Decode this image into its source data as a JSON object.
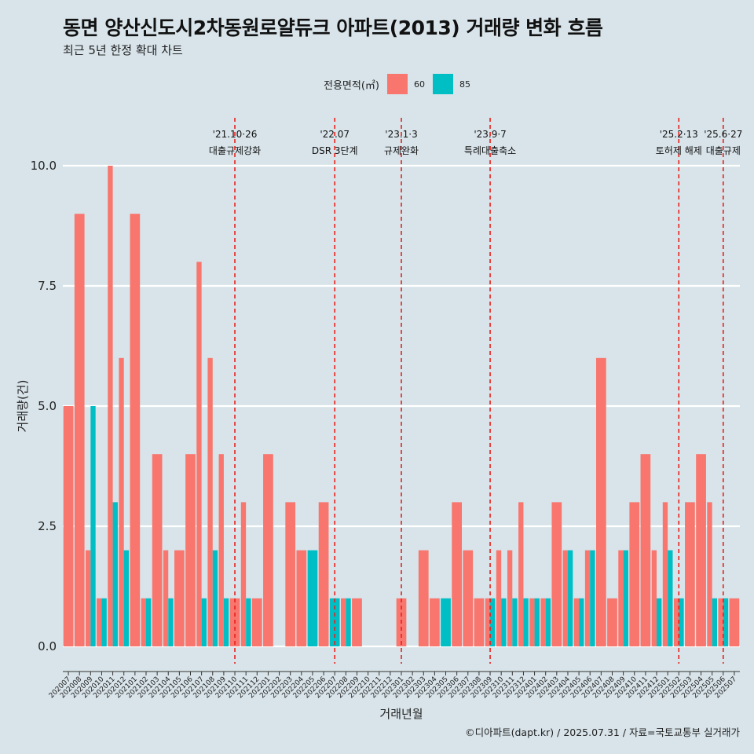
{
  "chart_data": {
    "type": "bar",
    "title": "동면 양산신도시2차동원로얄듀크 아파트(2013) 거래량 변화 흐름",
    "subtitle": "최근 5년 한정 확대 차트",
    "xlabel": "거래년월",
    "ylabel": "거래량(건)",
    "legend_title": "전용면적(㎡)",
    "caption": "©디아파트(dapt.kr) / 2025.07.31 / 자료=국토교통부 실거래가",
    "ylim": [
      0,
      10.5
    ],
    "yticks": [
      0,
      2.5,
      5,
      7.5,
      10
    ],
    "ytick_labels": [
      "0.0",
      "2.5",
      "5.0",
      "7.5",
      "10.0"
    ],
    "colors": {
      "60": "#f8766d",
      "85": "#00bfc4",
      "event_line": "#e8201c"
    },
    "categories": [
      "202007",
      "202008",
      "202009",
      "202010",
      "202011",
      "202012",
      "202101",
      "202102",
      "202103",
      "202104",
      "202105",
      "202106",
      "202107",
      "202108",
      "202109",
      "202110",
      "202111",
      "202112",
      "202201",
      "202202",
      "202203",
      "202204",
      "202205",
      "202206",
      "202207",
      "202208",
      "202209",
      "202210",
      "202211",
      "202212",
      "202301",
      "202302",
      "202303",
      "202304",
      "202305",
      "202306",
      "202307",
      "202308",
      "202309",
      "202310",
      "202311",
      "202312",
      "202401",
      "202402",
      "202403",
      "202404",
      "202405",
      "202406",
      "202407",
      "202408",
      "202409",
      "202410",
      "202411",
      "202412",
      "202501",
      "202502",
      "202503",
      "202504",
      "202505",
      "202506",
      "202507"
    ],
    "series": [
      {
        "name": "60",
        "values": [
          5,
          9,
          2,
          1,
          10,
          6,
          9,
          1,
          4,
          2,
          2,
          4,
          8,
          6,
          4,
          1,
          3,
          1,
          4,
          0,
          3,
          2,
          0,
          3,
          0,
          1,
          1,
          0,
          0,
          0,
          1,
          0,
          2,
          1,
          0,
          3,
          2,
          1,
          1,
          2,
          2,
          3,
          1,
          1,
          3,
          2,
          1,
          2,
          6,
          1,
          2,
          3,
          4,
          2,
          3,
          1,
          3,
          4,
          3,
          1,
          1
        ]
      },
      {
        "name": "85",
        "values": [
          0,
          0,
          5,
          1,
          3,
          2,
          0,
          1,
          0,
          1,
          0,
          0,
          1,
          2,
          1,
          0,
          1,
          0,
          0,
          0,
          0,
          0,
          2,
          0,
          1,
          1,
          0,
          0,
          0,
          0,
          0,
          0,
          0,
          0,
          1,
          0,
          0,
          0,
          1,
          1,
          1,
          1,
          1,
          1,
          0,
          2,
          1,
          2,
          0,
          0,
          2,
          0,
          0,
          1,
          2,
          1,
          0,
          0,
          1,
          1,
          0
        ]
      }
    ],
    "events": [
      {
        "category": "202110",
        "date": "'21.10·26",
        "label": "대출규제강화"
      },
      {
        "category": "202207",
        "date": "'22.07",
        "label": "DSR 3단계"
      },
      {
        "category": "202301",
        "date": "'23.1·3",
        "label": "규제완화"
      },
      {
        "category": "202309",
        "date": "'23.9·7",
        "label": "특례대출축소"
      },
      {
        "category": "202502",
        "date": "'25.2·13",
        "label": "토허제 해제"
      },
      {
        "category": "202506",
        "date": "'25.6·27",
        "label": "대출규제"
      }
    ]
  }
}
